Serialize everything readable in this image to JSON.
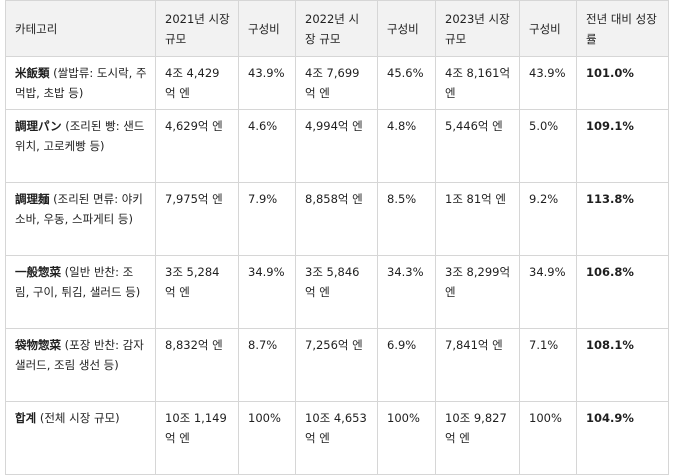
{
  "table": {
    "headers": [
      "카테고리",
      "2021년 시장 규모",
      "구성비",
      "2022년 시장 규모",
      "구성비",
      "2023년 시장 규모",
      "구성비",
      "전년 대비 성장률"
    ],
    "rows": [
      {
        "cat_bold": "米飯類",
        "cat_rest": " (쌀밥류: 도시락, 주먹밥, 초밥 등)",
        "y2021": "4조 4,429억 엔",
        "r2021": "43.9%",
        "y2022": "4조 7,699억 엔",
        "r2022": "45.6%",
        "y2023": "4조 8,161억 엔",
        "r2023": "43.9%",
        "growth": "101.0%"
      },
      {
        "cat_bold": "調理パン",
        "cat_rest": " (조리된 빵: 샌드위치, 고로케빵 등)",
        "y2021": "4,629억 엔",
        "r2021": "4.6%",
        "y2022": "4,994억 엔",
        "r2022": "4.8%",
        "y2023": "5,446억 엔",
        "r2023": "5.0%",
        "growth": "109.1%"
      },
      {
        "cat_bold": "調理麺",
        "cat_rest": " (조리된 면류: 야키소바, 우동, 스파게티 등)",
        "y2021": "7,975억 엔",
        "r2021": "7.9%",
        "y2022": "8,858억 엔",
        "r2022": "8.5%",
        "y2023": "1조 81억 엔",
        "r2023": "9.2%",
        "growth": "113.8%"
      },
      {
        "cat_bold": "一般惣菜",
        "cat_rest": " (일반 반찬: 조림, 구이, 튀김, 샐러드 등)",
        "y2021": "3조 5,284억 엔",
        "r2021": "34.9%",
        "y2022": "3조 5,846억 엔",
        "r2022": "34.3%",
        "y2023": "3조 8,299억 엔",
        "r2023": "34.9%",
        "growth": "106.8%"
      },
      {
        "cat_bold": "袋物惣菜",
        "cat_rest": " (포장 반찬: 감자 샐러드, 조림 생선 등)",
        "y2021": "8,832억 엔",
        "r2021": "8.7%",
        "y2022": "7,256억 엔",
        "r2022": "6.9%",
        "y2023": "7,841억 엔",
        "r2023": "7.1%",
        "growth": "108.1%"
      },
      {
        "cat_bold": "합계",
        "cat_rest": " (전체 시장 규모)",
        "y2021": "10조 1,149억 엔",
        "r2021": "100%",
        "y2022": "10조 4,653억 엔",
        "r2022": "100%",
        "y2023": "10조 9,827억 엔",
        "r2023": "100%",
        "growth": "104.9%"
      }
    ]
  }
}
